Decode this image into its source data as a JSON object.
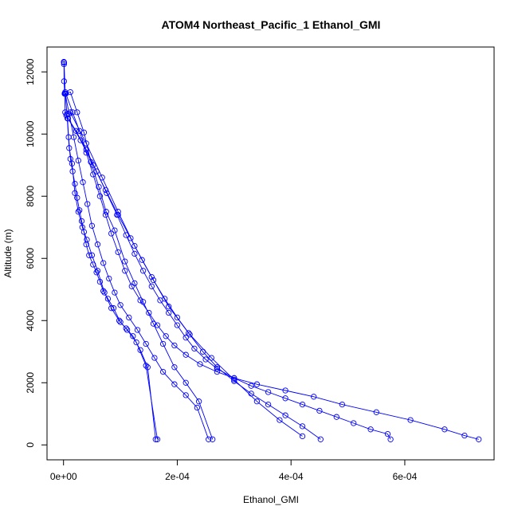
{
  "chart_data": {
    "type": "line",
    "title": "ATOM4 Northeast_Pacific_1 Ethanol_GMI",
    "xlabel": "Ethanol_GMI",
    "ylabel": "Altitude (m)",
    "xlim": [
      -2.9e-05,
      0.000757
    ],
    "ylim": [
      -480,
      12800
    ],
    "xticks": [
      {
        "value": 0,
        "label": "0e+00"
      },
      {
        "value": 0.0002,
        "label": "2e-04"
      },
      {
        "value": 0.0004,
        "label": "4e-04"
      },
      {
        "value": 0.0006,
        "label": "6e-04"
      }
    ],
    "yticks": [
      {
        "value": 0,
        "label": "0"
      },
      {
        "value": 2000,
        "label": "2000"
      },
      {
        "value": 4000,
        "label": "4000"
      },
      {
        "value": 6000,
        "label": "6000"
      },
      {
        "value": 8000,
        "label": "8000"
      },
      {
        "value": 10000,
        "label": "10000"
      },
      {
        "value": 12000,
        "label": "12000"
      }
    ],
    "grid": false,
    "legend": "none",
    "color": "#0000ff",
    "marker": "open-circle",
    "series": [
      {
        "x": [
          5e-07,
          8e-07,
          1e-06,
          2e-06,
          3e-06,
          5e-06,
          7e-06,
          9e-06,
          1.2e-05,
          1.6e-05,
          2e-05,
          2.4e-05,
          2.8e-05,
          3.2e-05,
          3.6e-05,
          4e-05,
          4.5e-05,
          5.2e-05,
          5.8e-05,
          6.4e-05,
          7e-05,
          7.8e-05,
          8.8e-05,
          0.0001,
          0.00011,
          0.000122,
          0.000135,
          0.000148,
          0.000162
        ],
        "y": [
          12320,
          12250,
          11700,
          11300,
          10700,
          10600,
          10500,
          9900,
          9200,
          8800,
          8400,
          7950,
          7550,
          7200,
          6850,
          6450,
          6100,
          5800,
          5550,
          5250,
          4950,
          4700,
          4400,
          3950,
          3750,
          3500,
          3050,
          2500,
          180
        ]
      },
      {
        "x": [
          1e-06,
          3e-06,
          6e-06,
          1e-05,
          1.5e-05,
          2e-05,
          2.6e-05,
          3.3e-05,
          4.1e-05,
          5e-05,
          6e-05,
          7.2e-05,
          8.4e-05,
          9.8e-05,
          0.000112,
          0.000128,
          0.000145,
          0.000165
        ],
        "y": [
          12300,
          11350,
          10650,
          9550,
          9050,
          8100,
          7500,
          7000,
          6600,
          6100,
          5600,
          4900,
          4400,
          4000,
          3700,
          3300,
          2550,
          180
        ]
      },
      {
        "x": [
          2e-06,
          1.2e-05,
          2.4e-05,
          3.6e-05,
          4.8e-05,
          6.2e-05,
          7.5e-05,
          9e-05,
          0.000108,
          0.000125,
          0.00014,
          0.000158,
          0.000175,
          0.000195,
          0.000215,
          0.000238,
          0.000262
        ],
        "y": [
          11300,
          11350,
          10700,
          10050,
          9100,
          8300,
          7500,
          6900,
          5900,
          5200,
          4600,
          3900,
          3250,
          2500,
          2000,
          1400,
          180
        ]
      },
      {
        "x": [
          3e-06,
          1e-05,
          1.8e-05,
          2.6e-05,
          3.4e-05,
          4.2e-05,
          5e-05,
          6e-05,
          7e-05,
          8e-05,
          9e-05,
          0.0001,
          0.000115,
          0.00013,
          0.000145,
          0.00016,
          0.000175,
          0.000195,
          0.000215,
          0.000235,
          0.000255
        ],
        "y": [
          11300,
          10650,
          9900,
          9150,
          8450,
          7750,
          7050,
          6450,
          5850,
          5350,
          4900,
          4500,
          4100,
          3700,
          3250,
          2800,
          2350,
          1950,
          1600,
          1200,
          180
        ]
      },
      {
        "x": [
          4e-06,
          1.6e-05,
          2.8e-05,
          4e-05,
          5.2e-05,
          6.4e-05,
          7.4e-05,
          8.4e-05,
          9.6e-05,
          0.000108,
          0.00012,
          0.000135,
          0.00015,
          0.000165,
          0.00018,
          0.000195,
          0.000215,
          0.00024,
          0.00027,
          0.0003,
          0.00034,
          0.00039,
          0.00044,
          0.00049,
          0.00055,
          0.00061,
          0.00067,
          0.000705,
          0.00073
        ],
        "y": [
          11300,
          10700,
          10100,
          9400,
          8700,
          8000,
          7400,
          6800,
          6200,
          5600,
          5100,
          4650,
          4250,
          3850,
          3500,
          3200,
          2900,
          2600,
          2350,
          2150,
          1950,
          1750,
          1550,
          1300,
          1050,
          800,
          500,
          300,
          180
        ]
      },
      {
        "x": [
          5e-06,
          2.2e-05,
          4e-05,
          5.8e-05,
          7.6e-05,
          9.4e-05,
          0.00011,
          0.000125,
          0.00014,
          0.000155,
          0.00017,
          0.000185,
          0.0002,
          0.000215,
          0.00023,
          0.00025,
          0.00027,
          0.0003,
          0.00033,
          0.00036,
          0.00039,
          0.00042,
          0.00045,
          0.00048,
          0.00051,
          0.00054,
          0.00057,
          0.000575
        ],
        "y": [
          10600,
          10100,
          9500,
          8800,
          8100,
          7400,
          6750,
          6150,
          5600,
          5100,
          4650,
          4250,
          3850,
          3450,
          3100,
          2750,
          2450,
          2150,
          1900,
          1700,
          1500,
          1300,
          1100,
          900,
          700,
          500,
          350,
          180
        ]
      },
      {
        "x": [
          8e-06,
          3e-05,
          5.2e-05,
          7.4e-05,
          9.6e-05,
          0.000118,
          0.000138,
          0.000158,
          0.000178,
          0.0002,
          0.000222,
          0.000245,
          0.00027,
          0.0003,
          0.00033,
          0.00036,
          0.00039,
          0.00042,
          0.000452
        ],
        "y": [
          10500,
          9800,
          9000,
          8200,
          7400,
          6650,
          5950,
          5300,
          4700,
          4100,
          3550,
          3000,
          2500,
          2050,
          1650,
          1300,
          950,
          600,
          180
        ]
      },
      {
        "x": [
          1.2e-05,
          4e-05,
          6.8e-05,
          9.6e-05,
          0.000125,
          0.000155,
          0.000185,
          0.00022,
          0.00026,
          0.0003,
          0.00034,
          0.00038,
          0.00042
        ],
        "y": [
          10700,
          9700,
          8600,
          7500,
          6400,
          5400,
          4450,
          3600,
          2800,
          2100,
          1400,
          800,
          280
        ]
      }
    ]
  }
}
